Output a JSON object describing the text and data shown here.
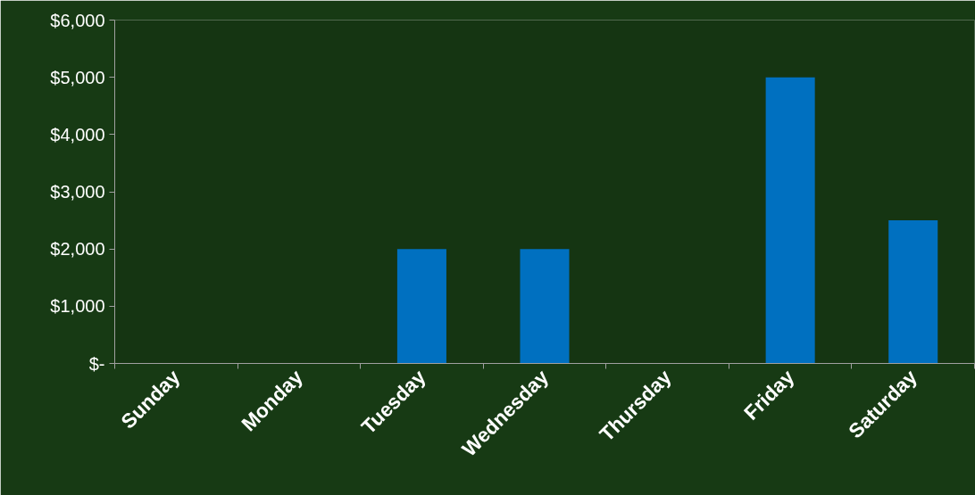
{
  "chart_data": {
    "type": "bar",
    "categories": [
      "Sunday",
      "Monday",
      "Tuesday",
      "Wednesday",
      "Thursday",
      "Friday",
      "Saturday"
    ],
    "values": [
      0,
      0,
      2000,
      2000,
      0,
      5000,
      2500
    ],
    "color": "#0070c0",
    "ylim": [
      0,
      6000
    ],
    "yticks": [
      {
        "value": 0,
        "label": "$-"
      },
      {
        "value": 1000,
        "label": "$1,000"
      },
      {
        "value": 2000,
        "label": "$2,000"
      },
      {
        "value": 3000,
        "label": "$3,000"
      },
      {
        "value": 4000,
        "label": "$4,000"
      },
      {
        "value": 5000,
        "label": "$5,000"
      },
      {
        "value": 6000,
        "label": "$6,000"
      }
    ],
    "grid": false
  }
}
